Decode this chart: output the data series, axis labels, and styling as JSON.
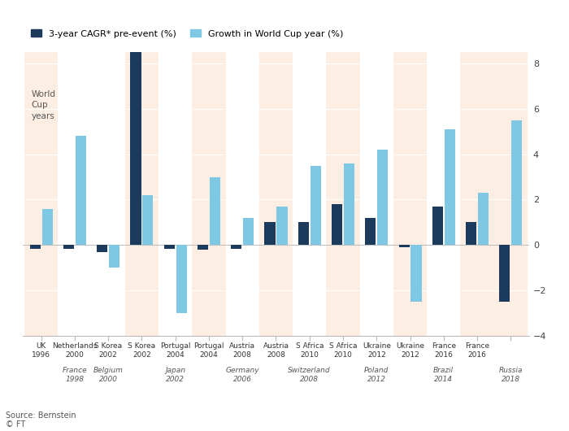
{
  "events": [
    {
      "top_label": "UK\n1996",
      "bottom_label": "",
      "cagr": -0.15,
      "growth": 1.6,
      "shaded": true,
      "is_wc": false
    },
    {
      "top_label": "Netherlands\n2000",
      "bottom_label": "France\n1998",
      "cagr": -0.15,
      "growth": 4.8,
      "shaded": false,
      "is_wc": false
    },
    {
      "top_label": "S Korea\n2002",
      "bottom_label": "Belgium\n2000",
      "cagr": -0.3,
      "growth": -1.0,
      "shaded": false,
      "is_wc": false
    },
    {
      "top_label": "S Korea\n2002",
      "bottom_label": "",
      "cagr": 8.5,
      "growth": 2.2,
      "shaded": true,
      "is_wc": true
    },
    {
      "top_label": "Portugal\n2004",
      "bottom_label": "Japan\n2002",
      "cagr": -0.15,
      "growth": -3.0,
      "shaded": false,
      "is_wc": false
    },
    {
      "top_label": "Portugal\n2004",
      "bottom_label": "",
      "cagr": -0.2,
      "growth": 3.0,
      "shaded": true,
      "is_wc": true
    },
    {
      "top_label": "Austria\n2008",
      "bottom_label": "Germany\n2006",
      "cagr": -0.15,
      "growth": 1.2,
      "shaded": false,
      "is_wc": false
    },
    {
      "top_label": "Austria\n2008",
      "bottom_label": "",
      "cagr": 1.0,
      "growth": 1.7,
      "shaded": true,
      "is_wc": true
    },
    {
      "top_label": "S Africa\n2010",
      "bottom_label": "Switzerland\n2008",
      "cagr": 1.0,
      "growth": 3.5,
      "shaded": false,
      "is_wc": false
    },
    {
      "top_label": "S Africa\n2010",
      "bottom_label": "",
      "cagr": 1.8,
      "growth": 3.6,
      "shaded": true,
      "is_wc": true
    },
    {
      "top_label": "Ukraine\n2012",
      "bottom_label": "Poland\n2012",
      "cagr": 1.2,
      "growth": 4.2,
      "shaded": false,
      "is_wc": false
    },
    {
      "top_label": "Ukraine\n2012",
      "bottom_label": "",
      "cagr": -0.1,
      "growth": -2.5,
      "shaded": true,
      "is_wc": true
    },
    {
      "top_label": "France\n2016",
      "bottom_label": "Brazil\n2014",
      "cagr": 1.7,
      "growth": 5.1,
      "shaded": false,
      "is_wc": false
    },
    {
      "top_label": "France\n2016",
      "bottom_label": "",
      "cagr": 1.0,
      "growth": 2.3,
      "shaded": true,
      "is_wc": true
    },
    {
      "top_label": "",
      "bottom_label": "Russia\n2018",
      "cagr": -2.5,
      "growth": 5.5,
      "shaded": true,
      "is_wc": true
    }
  ],
  "dark_blue": "#1b3a5c",
  "light_blue": "#7ec8e3",
  "shaded_bg": "#fdeee3",
  "ylim": [
    -4,
    8.5
  ],
  "yticks": [
    -4,
    -2,
    0,
    2,
    4,
    6,
    8
  ],
  "annotation": "World\nCup\nyears",
  "source": "Source: Bernstein\n© FT",
  "legend1": "3-year CAGR* pre-event (%)",
  "legend2": "Growth in World Cup year (%)"
}
